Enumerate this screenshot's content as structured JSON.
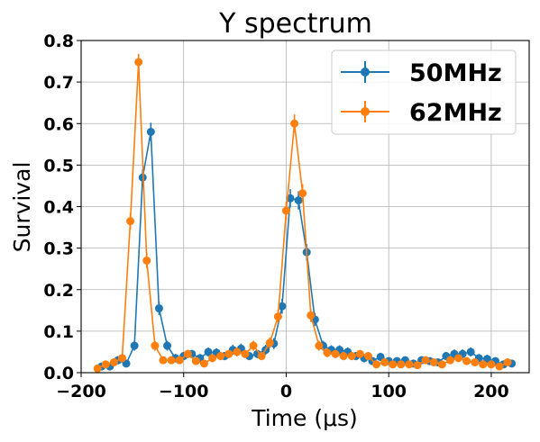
{
  "chart_data": {
    "type": "line",
    "title": "Y spectrum",
    "xlabel": "Time (μs)",
    "ylabel": "Survival",
    "xlim": [
      -200,
      237
    ],
    "ylim": [
      0,
      0.8
    ],
    "xticks": [
      -200,
      -100,
      0,
      100,
      200
    ],
    "xtick_labels": [
      "−200",
      "−100",
      "0",
      "100",
      "200"
    ],
    "yticks": [
      0.0,
      0.1,
      0.2,
      0.3,
      0.4,
      0.5,
      0.6,
      0.7,
      0.8
    ],
    "ytick_labels": [
      "0.0",
      "0.1",
      "0.2",
      "0.3",
      "0.4",
      "0.5",
      "0.6",
      "0.7",
      "0.8"
    ],
    "grid": true,
    "legend_position": "top-right",
    "series": [
      {
        "name": "50MHz",
        "color": "#1f77b4",
        "x": [
          -180,
          -172,
          -164,
          -156,
          -148,
          -140,
          -132,
          -124,
          -116,
          -108,
          -100,
          -92,
          -84,
          -76,
          -68,
          -60,
          -52,
          -44,
          -36,
          -28,
          -20,
          -12,
          -4,
          4,
          12,
          20,
          28,
          36,
          44,
          52,
          60,
          68,
          76,
          84,
          92,
          100,
          108,
          116,
          124,
          132,
          140,
          148,
          156,
          164,
          172,
          180,
          188,
          196,
          204,
          212,
          220
        ],
        "y": [
          0.015,
          0.015,
          0.03,
          0.022,
          0.065,
          0.47,
          0.58,
          0.155,
          0.065,
          0.035,
          0.04,
          0.045,
          0.035,
          0.05,
          0.048,
          0.04,
          0.055,
          0.058,
          0.04,
          0.045,
          0.055,
          0.07,
          0.16,
          0.42,
          0.415,
          0.29,
          0.128,
          0.065,
          0.055,
          0.055,
          0.05,
          0.04,
          0.035,
          0.028,
          0.038,
          0.028,
          0.028,
          0.03,
          0.022,
          0.03,
          0.028,
          0.025,
          0.04,
          0.045,
          0.045,
          0.05,
          0.035,
          0.033,
          0.028,
          0.02,
          0.022
        ],
        "err": [
          0.008,
          0.008,
          0.01,
          0.009,
          0.012,
          0.02,
          0.022,
          0.016,
          0.012,
          0.01,
          0.01,
          0.01,
          0.01,
          0.011,
          0.011,
          0.01,
          0.012,
          0.012,
          0.01,
          0.01,
          0.012,
          0.013,
          0.018,
          0.022,
          0.022,
          0.02,
          0.016,
          0.012,
          0.011,
          0.011,
          0.011,
          0.01,
          0.01,
          0.009,
          0.01,
          0.009,
          0.009,
          0.009,
          0.008,
          0.009,
          0.009,
          0.008,
          0.01,
          0.011,
          0.011,
          0.011,
          0.01,
          0.01,
          0.009,
          0.008,
          0.008
        ]
      },
      {
        "name": "62MHz",
        "color": "#ff7f0e",
        "x": [
          -184,
          -176,
          -168,
          -160,
          -152,
          -144,
          -136,
          -128,
          -120,
          -112,
          -104,
          -96,
          -88,
          -80,
          -72,
          -64,
          -56,
          -48,
          -40,
          -32,
          -24,
          -16,
          -8,
          0,
          8,
          16,
          24,
          32,
          40,
          48,
          56,
          64,
          72,
          80,
          88,
          96,
          104,
          112,
          120,
          128,
          136,
          144,
          152,
          160,
          168,
          176,
          184,
          192,
          200,
          208,
          216
        ],
        "y": [
          0.01,
          0.02,
          0.025,
          0.035,
          0.365,
          0.748,
          0.27,
          0.065,
          0.03,
          0.03,
          0.03,
          0.045,
          0.028,
          0.022,
          0.035,
          0.04,
          0.045,
          0.05,
          0.045,
          0.065,
          0.04,
          0.072,
          0.135,
          0.39,
          0.6,
          0.432,
          0.138,
          0.065,
          0.048,
          0.045,
          0.04,
          0.04,
          0.045,
          0.04,
          0.02,
          0.025,
          0.02,
          0.02,
          0.02,
          0.018,
          0.03,
          0.025,
          0.02,
          0.03,
          0.035,
          0.028,
          0.025,
          0.02,
          0.02,
          0.015,
          0.025
        ],
        "err": [
          0.007,
          0.008,
          0.009,
          0.01,
          0.02,
          0.02,
          0.018,
          0.012,
          0.009,
          0.009,
          0.009,
          0.01,
          0.009,
          0.008,
          0.01,
          0.01,
          0.01,
          0.011,
          0.01,
          0.012,
          0.01,
          0.013,
          0.016,
          0.022,
          0.022,
          0.022,
          0.016,
          0.012,
          0.011,
          0.01,
          0.01,
          0.01,
          0.01,
          0.01,
          0.008,
          0.008,
          0.008,
          0.008,
          0.008,
          0.007,
          0.009,
          0.008,
          0.008,
          0.009,
          0.009,
          0.009,
          0.008,
          0.008,
          0.008,
          0.007,
          0.008
        ]
      }
    ]
  }
}
